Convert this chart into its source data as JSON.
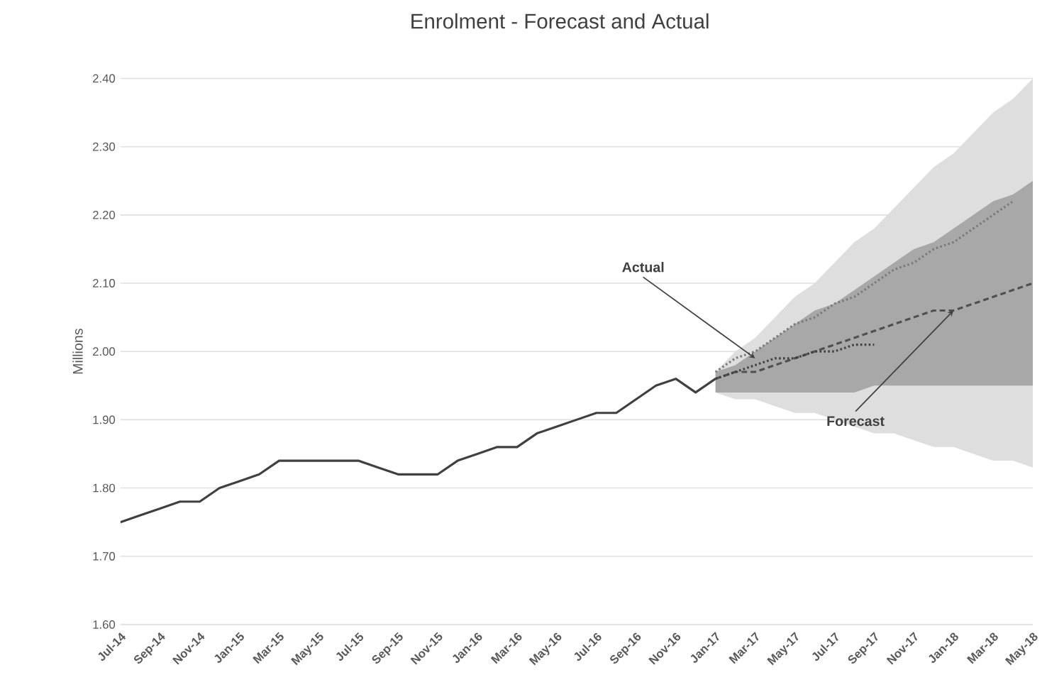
{
  "chart_data": {
    "type": "line",
    "title": "Enrolment - Forecast and Actual",
    "ylabel": "Millions",
    "categories": [
      "Jul-14",
      null,
      "Sep-14",
      null,
      "Nov-14",
      null,
      "Jan-15",
      null,
      "Mar-15",
      null,
      "May-15",
      null,
      "Jul-15",
      null,
      "Sep-15",
      null,
      "Nov-15",
      null,
      "Jan-16",
      null,
      "Mar-16",
      null,
      "May-16",
      null,
      "Jul-16",
      null,
      "Sep-16",
      null,
      "Nov-16",
      null,
      "Jan-17",
      null,
      "Mar-17",
      null,
      "May-17",
      null,
      "Jul-17",
      null,
      "Sep-17",
      null,
      "Nov-17",
      null,
      "Jan-18",
      null,
      "Mar-18",
      null,
      "May-18"
    ],
    "ylim": [
      1.6,
      2.4
    ],
    "yticks": [
      {
        "value": 1.6,
        "label": "1.60"
      },
      {
        "value": 1.7,
        "label": "1.70"
      },
      {
        "value": 1.8,
        "label": "1.80"
      },
      {
        "value": 1.9,
        "label": "1.90"
      },
      {
        "value": 2.0,
        "label": "2.00"
      },
      {
        "value": 2.1,
        "label": "2.10"
      },
      {
        "value": 2.2,
        "label": "2.20"
      },
      {
        "value": 2.3,
        "label": "2.30"
      },
      {
        "value": 2.4,
        "label": "2.40"
      }
    ],
    "grid": "y",
    "series": [
      {
        "color": "#7a7a7a",
        "line_style": "dotted",
        "values": [
          null,
          null,
          null,
          null,
          null,
          null,
          null,
          null,
          null,
          null,
          null,
          null,
          null,
          null,
          null,
          null,
          null,
          null,
          null,
          null,
          null,
          null,
          null,
          null,
          null,
          null,
          null,
          null,
          null,
          null,
          1.97,
          1.99,
          2.0,
          2.02,
          2.04,
          2.05,
          2.07,
          2.08,
          2.1,
          2.12,
          2.13,
          2.15,
          2.16,
          2.18,
          2.2,
          2.22,
          null
        ],
        "lower": [
          null,
          null,
          null,
          null,
          null,
          null,
          null,
          null,
          null,
          null,
          null,
          null,
          null,
          null,
          null,
          null,
          null,
          null,
          null,
          null,
          null,
          null,
          null,
          null,
          null,
          null,
          null,
          null,
          null,
          null,
          1.94,
          1.93,
          1.93,
          1.92,
          1.91,
          1.91,
          1.9,
          1.89,
          1.88,
          1.88,
          1.87,
          1.86,
          1.86,
          1.85,
          1.84,
          1.84,
          1.83
        ],
        "upper": [
          null,
          null,
          null,
          null,
          null,
          null,
          null,
          null,
          null,
          null,
          null,
          null,
          null,
          null,
          null,
          null,
          null,
          null,
          null,
          null,
          null,
          null,
          null,
          null,
          null,
          null,
          null,
          null,
          null,
          null,
          1.97,
          2.0,
          2.02,
          2.05,
          2.08,
          2.1,
          2.13,
          2.16,
          2.18,
          2.21,
          2.24,
          2.27,
          2.29,
          2.32,
          2.35,
          2.37,
          2.4
        ]
      },
      {
        "color": "#404040",
        "line_style": "solid",
        "values": [
          1.75,
          1.76,
          1.77,
          1.78,
          1.78,
          1.8,
          1.81,
          1.82,
          1.84,
          1.84,
          1.84,
          1.84,
          1.84,
          1.83,
          1.82,
          1.82,
          1.82,
          1.84,
          1.85,
          1.86,
          1.86,
          1.88,
          1.89,
          1.9,
          1.91,
          1.91,
          1.93,
          1.95,
          1.96,
          1.94,
          1.96,
          null,
          null,
          null,
          null,
          null,
          null,
          null,
          null,
          null,
          null,
          null,
          null,
          null,
          null,
          null,
          null
        ]
      },
      {
        "color": "#505050",
        "line_style": "dashed",
        "values": [
          null,
          null,
          null,
          null,
          null,
          null,
          null,
          null,
          null,
          null,
          null,
          null,
          null,
          null,
          null,
          null,
          null,
          null,
          null,
          null,
          null,
          null,
          null,
          null,
          null,
          null,
          null,
          null,
          null,
          null,
          1.96,
          1.97,
          1.97,
          1.98,
          1.99,
          2.0,
          2.01,
          2.02,
          2.03,
          2.04,
          2.05,
          2.06,
          2.06,
          2.07,
          2.08,
          2.09,
          2.1
        ],
        "lower": [
          null,
          null,
          null,
          null,
          null,
          null,
          null,
          null,
          null,
          null,
          null,
          null,
          null,
          null,
          null,
          null,
          null,
          null,
          null,
          null,
          null,
          null,
          null,
          null,
          null,
          null,
          null,
          null,
          null,
          null,
          1.94,
          1.94,
          1.94,
          1.94,
          1.94,
          1.94,
          1.94,
          1.94,
          1.95,
          1.95,
          1.95,
          1.95,
          1.95,
          1.95,
          1.95,
          1.95,
          1.95
        ],
        "upper": [
          null,
          null,
          null,
          null,
          null,
          null,
          null,
          null,
          null,
          null,
          null,
          null,
          null,
          null,
          null,
          null,
          null,
          null,
          null,
          null,
          null,
          null,
          null,
          null,
          null,
          null,
          null,
          null,
          null,
          null,
          1.97,
          1.98,
          2.0,
          2.02,
          2.04,
          2.06,
          2.07,
          2.09,
          2.11,
          2.13,
          2.15,
          2.16,
          2.18,
          2.2,
          2.22,
          2.23,
          2.25
        ]
      },
      {
        "color": "#404040",
        "line_style": "dotted",
        "values": [
          null,
          null,
          null,
          null,
          null,
          null,
          null,
          null,
          null,
          null,
          null,
          null,
          null,
          null,
          null,
          null,
          null,
          null,
          null,
          null,
          null,
          null,
          null,
          null,
          null,
          null,
          null,
          null,
          null,
          null,
          1.96,
          1.97,
          1.98,
          1.99,
          1.99,
          2.0,
          2.0,
          2.01,
          2.01,
          null,
          null,
          null,
          null,
          null,
          null,
          null,
          null
        ]
      }
    ],
    "annotations": [
      {
        "text": "Actual",
        "x": "Mar-17",
        "y": 1.99
      },
      {
        "text": "Forecast",
        "x": "Jan-18",
        "y": 2.06
      }
    ]
  }
}
